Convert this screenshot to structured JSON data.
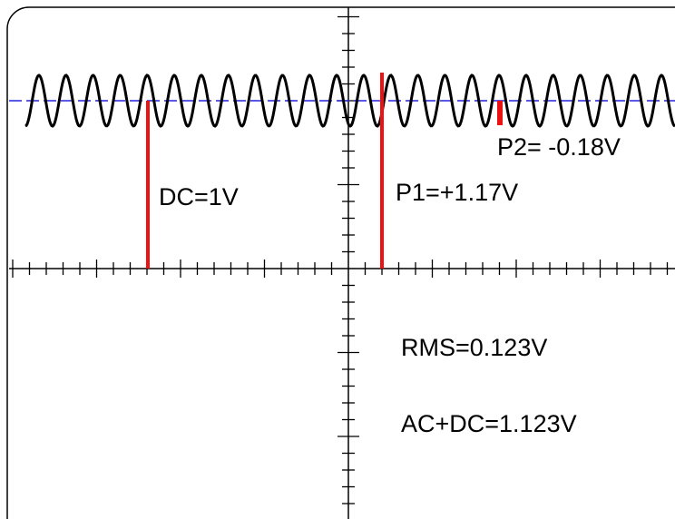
{
  "labels": {
    "dc": "DC=1V",
    "p1": "P1=+1.17V",
    "p2": "P2= -0.18V",
    "rms": "RMS=0.123V",
    "acdc": "AC+DC=1.123V"
  },
  "signal": {
    "dc_level_v": 1.0,
    "peak_p1_v": 1.17,
    "p2_v": -0.18,
    "rms_v": 0.123,
    "ac_plus_dc_v": 1.123,
    "cycles_visible": 24
  },
  "colors": {
    "trace": "#000000",
    "dc_line": "#2222dd",
    "markers": "#ee1111",
    "axes": "#000000",
    "frame": "#000000",
    "background": "#ffffff"
  }
}
